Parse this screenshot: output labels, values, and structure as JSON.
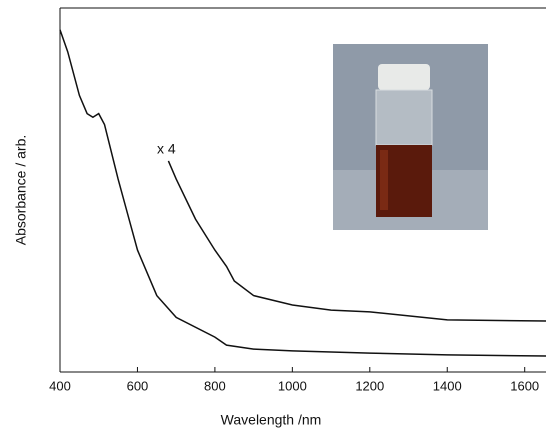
{
  "chart_data": {
    "type": "line",
    "xlabel": "Wavelength /nm",
    "ylabel": "Absorbance / arb.",
    "annotation": "x 4",
    "xlim": [
      400,
      1655
    ],
    "xticks": [
      400,
      600,
      800,
      1000,
      1200,
      1400,
      1600
    ],
    "ylim": [
      0,
      1
    ],
    "series": [
      {
        "color": "#111111",
        "x": [
          400,
          420,
          450,
          470,
          485,
          500,
          515,
          550,
          600,
          650,
          700,
          800,
          830,
          900,
          1000,
          1200,
          1400,
          1655
        ],
        "values": [
          0.94,
          0.88,
          0.76,
          0.71,
          0.7,
          0.71,
          0.68,
          0.53,
          0.335,
          0.21,
          0.15,
          0.096,
          0.074,
          0.063,
          0.058,
          0.052,
          0.047,
          0.044
        ]
      },
      {
        "color": "#111111",
        "x": [
          680,
          700,
          750,
          800,
          830,
          850,
          900,
          1000,
          1100,
          1200,
          1400,
          1655
        ],
        "values": [
          0.58,
          0.53,
          0.42,
          0.335,
          0.29,
          0.25,
          0.21,
          0.184,
          0.17,
          0.165,
          0.143,
          0.14
        ]
      }
    ]
  }
}
